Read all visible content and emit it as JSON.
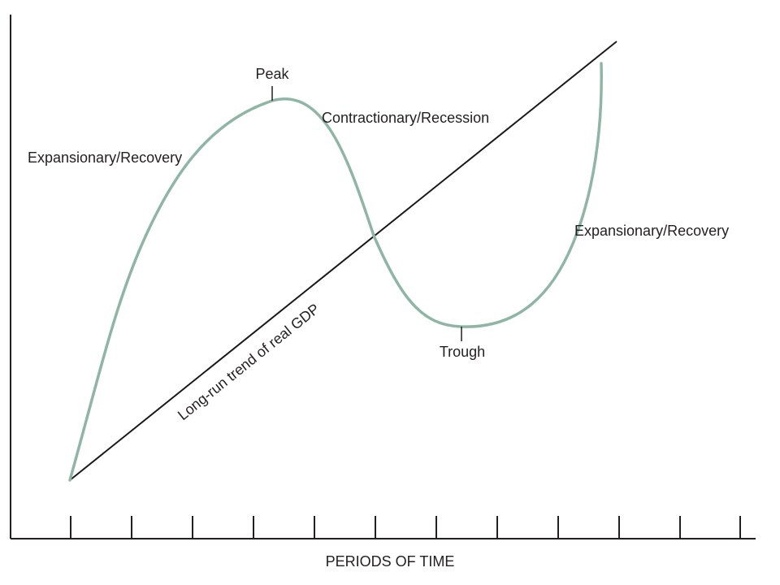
{
  "diagram": {
    "labels": {
      "peak": "Peak",
      "contraction": "Contractionary/Recession",
      "expansion_left": "Expansionary/Recovery",
      "expansion_right": "Expansionary/Recovery",
      "trough": "Trough",
      "trend": "Long-run trend of real GDP",
      "x_axis": "PERIODS OF TIME"
    },
    "tick_count": 12,
    "colors": {
      "cycle_curve": "#8fb5a5",
      "trend_line": "#1a1a1a",
      "axis": "#231f20",
      "text": "#231f20"
    }
  }
}
